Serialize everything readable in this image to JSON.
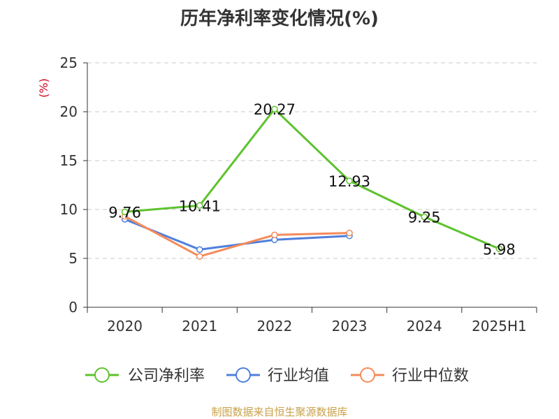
{
  "chart_data": {
    "type": "line",
    "title": "历年净利率变化情况(%)",
    "ylabel": "(%)",
    "xlabel": "",
    "categories": [
      "2020",
      "2021",
      "2022",
      "2023",
      "2024",
      "2025H1"
    ],
    "ylim": [
      0,
      25
    ],
    "yticks": [
      0,
      5,
      10,
      15,
      20,
      25
    ],
    "grid": true,
    "legend_position": "bottom",
    "series": [
      {
        "name": "公司净利率",
        "color": "#5ec22d",
        "values": [
          9.76,
          10.41,
          20.27,
          12.93,
          9.25,
          5.98
        ],
        "labels": [
          "9.76",
          "10.41",
          "20.27",
          "12.93",
          "9.25",
          "5.98"
        ]
      },
      {
        "name": "行业均值",
        "color": "#4f7fdc",
        "values": [
          9.0,
          5.9,
          6.9,
          7.3,
          null,
          null
        ]
      },
      {
        "name": "行业中位数",
        "color": "#f58b5a",
        "values": [
          9.3,
          5.2,
          7.4,
          7.6,
          null,
          null
        ]
      }
    ]
  },
  "footer": {
    "source": "制图数据来自恒生聚源数据库"
  }
}
